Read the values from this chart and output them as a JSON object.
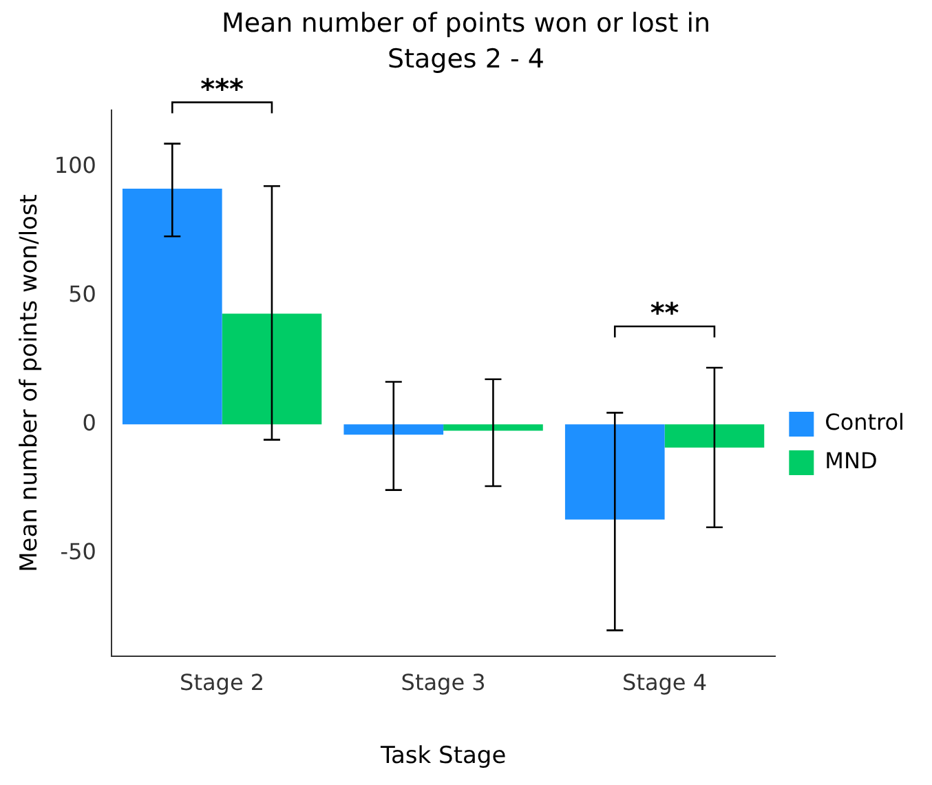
{
  "chart_data": {
    "type": "bar",
    "title": "Mean number of points won or lost in Stages 2 - 4",
    "xlabel": "Task Stage",
    "ylabel": "Mean number of points won/lost",
    "categories": [
      "Stage 2",
      "Stage 3",
      "Stage 4"
    ],
    "series": [
      {
        "name": "Control",
        "color": "#1e90ff",
        "values": [
          91.5,
          -4,
          -37
        ],
        "errors": [
          [
            73,
            109
          ],
          [
            -25.5,
            16.5
          ],
          [
            -80,
            4.5
          ]
        ]
      },
      {
        "name": "MND",
        "color": "#00cc66",
        "values": [
          43,
          -2.5,
          -9
        ],
        "errors": [
          [
            -6,
            92.5
          ],
          [
            -24,
            17.5
          ],
          [
            -40,
            22
          ]
        ]
      }
    ],
    "ylim": [
      -90,
      122
    ],
    "yticks": [
      -50,
      0,
      50,
      100
    ],
    "grid": false,
    "legend": "right",
    "annotations": [
      "***",
      "**"
    ]
  }
}
